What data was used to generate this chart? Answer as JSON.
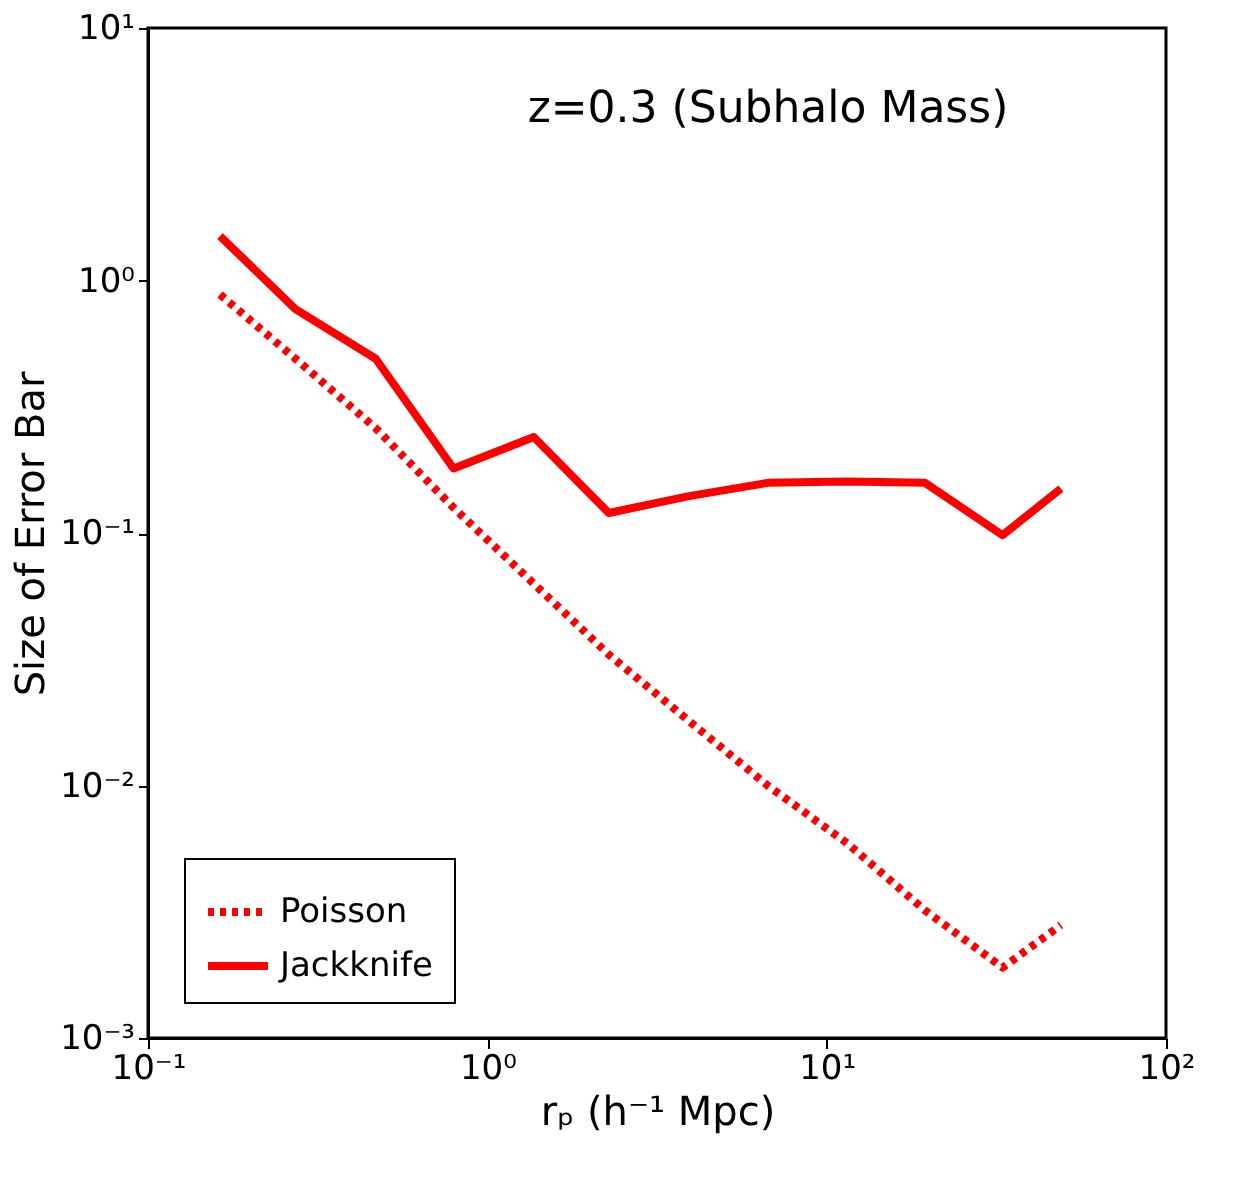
{
  "chart_data": {
    "type": "line",
    "xlabel": "rₚ (h⁻¹ Mpc)",
    "ylabel": "Size of Error Bar",
    "annotations": [
      "z=0.3 (Subhalo Mass)"
    ],
    "x": [
      0.163,
      0.272,
      0.469,
      0.795,
      1.37,
      2.28,
      3.93,
      6.7,
      11.5,
      19.5,
      33,
      49
    ],
    "series": [
      {
        "name": "Poisson",
        "color": "#ff0000",
        "line_style": "dotted",
        "values": [
          0.88,
          0.49,
          0.26,
          0.126,
          0.063,
          0.033,
          0.018,
          0.01,
          0.0059,
          0.0032,
          0.0019,
          0.0028
        ]
      },
      {
        "name": "Jackknife",
        "color": "#ff0000",
        "line_style": "solid",
        "values": [
          1.5,
          0.77,
          0.49,
          0.18,
          0.24,
          0.12,
          0.14,
          0.158,
          0.16,
          0.158,
          0.098,
          0.15
        ]
      }
    ],
    "log": "xy",
    "xlim": [
      0.1,
      100
    ],
    "ylim": [
      0.001,
      10
    ],
    "xticks": [
      {
        "value": 0.1,
        "label": "10⁻¹"
      },
      {
        "value": 1,
        "label": "10⁰"
      },
      {
        "value": 10,
        "label": "10¹"
      },
      {
        "value": 100,
        "label": "10²"
      }
    ],
    "yticks": [
      {
        "value": 0.001,
        "label": "10⁻³"
      },
      {
        "value": 0.01,
        "label": "10⁻²"
      },
      {
        "value": 0.1,
        "label": "10⁻¹"
      },
      {
        "value": 1,
        "label": "10⁰"
      },
      {
        "value": 10,
        "label": "10¹"
      }
    ],
    "grid": false,
    "legend": "bottom left",
    "marker": "none"
  }
}
